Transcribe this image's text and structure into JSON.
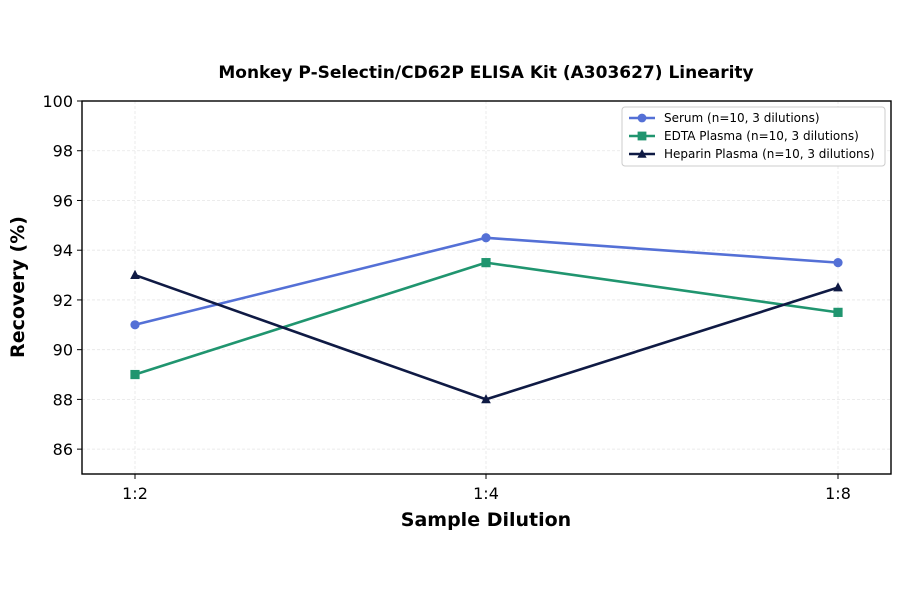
{
  "chart_data": {
    "type": "line",
    "title": "Monkey P-Selectin/CD62P ELISA Kit (A303627) Linearity",
    "xlabel": "Sample Dilution",
    "ylabel": "Recovery (%)",
    "categories": [
      "1:2",
      "1:4",
      "1:8"
    ],
    "ylim": [
      85,
      100
    ],
    "yticks": [
      86,
      88,
      90,
      92,
      94,
      96,
      98,
      100
    ],
    "grid": true,
    "legend_position": "top-right",
    "series": [
      {
        "name": "Serum (n=10, 3 dilutions)",
        "values": [
          91.0,
          94.5,
          93.5
        ],
        "color": "#5470d6",
        "marker": "circle"
      },
      {
        "name": "EDTA Plasma (n=10, 3 dilutions)",
        "values": [
          89.0,
          93.5,
          91.5
        ],
        "color": "#20956f",
        "marker": "square"
      },
      {
        "name": "Heparin Plasma (n=10, 3 dilutions)",
        "values": [
          93.0,
          88.0,
          92.5
        ],
        "color": "#0f1a44",
        "marker": "triangle"
      }
    ]
  }
}
